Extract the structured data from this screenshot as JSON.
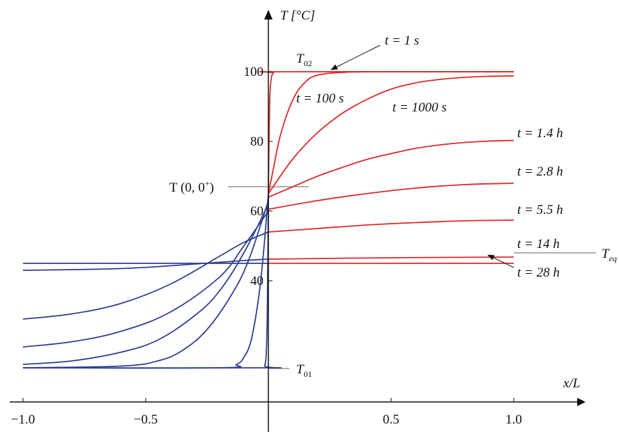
{
  "chart_data": {
    "type": "line",
    "title": "",
    "xlabel": "x/L",
    "ylabel": "T [°C]",
    "xlim": [
      -1.0,
      1.25
    ],
    "ylim": [
      10,
      115
    ],
    "x_ticks": [
      {
        "value": -1.0,
        "label": "−1.0"
      },
      {
        "value": -0.5,
        "label": "−0.5"
      },
      {
        "value": 0.5,
        "label": "0.5"
      },
      {
        "value": 1.0,
        "label": "1.0"
      }
    ],
    "y_ticks": [
      {
        "value": 40,
        "label": "40"
      },
      {
        "value": 60,
        "label": "60"
      },
      {
        "value": 80,
        "label": "80"
      },
      {
        "value": 100,
        "label": "100"
      }
    ],
    "grid": false,
    "colors": {
      "right_region": "#dd2a2a",
      "left_region": "#2f3f8f",
      "axis": "#111111"
    },
    "series": [
      {
        "name": "t = 1 s",
        "right": [
          [
            0,
            65
          ],
          [
            0.005,
            90
          ],
          [
            0.01,
            97
          ],
          [
            0.02,
            99.6
          ],
          [
            0.05,
            100
          ],
          [
            1.0,
            100
          ]
        ],
        "left": [
          [
            -1.0,
            15
          ],
          [
            -0.03,
            15
          ],
          [
            -0.015,
            15.6
          ],
          [
            -0.008,
            20
          ],
          [
            -0.004,
            33
          ],
          [
            0,
            65
          ]
        ]
      },
      {
        "name": "t = 100 s",
        "right": [
          [
            0,
            65
          ],
          [
            0.02,
            72
          ],
          [
            0.05,
            82
          ],
          [
            0.1,
            92
          ],
          [
            0.15,
            97
          ],
          [
            0.2,
            99
          ],
          [
            0.3,
            99.8
          ],
          [
            0.45,
            100
          ],
          [
            1.0,
            100
          ]
        ],
        "left": [
          [
            -1.0,
            15
          ],
          [
            -0.2,
            15
          ],
          [
            -0.13,
            16
          ],
          [
            -0.1,
            18
          ],
          [
            -0.07,
            23
          ],
          [
            -0.04,
            35
          ],
          [
            -0.02,
            48
          ],
          [
            0,
            65
          ]
        ]
      },
      {
        "name": "t = 1000 s",
        "right": [
          [
            0,
            65
          ],
          [
            0.1,
            75
          ],
          [
            0.2,
            82.5
          ],
          [
            0.3,
            88
          ],
          [
            0.4,
            92
          ],
          [
            0.5,
            95
          ],
          [
            0.6,
            96.8
          ],
          [
            0.7,
            97.8
          ],
          [
            0.8,
            98.4
          ],
          [
            0.9,
            98.7
          ],
          [
            1.0,
            98.8
          ]
        ],
        "left": [
          [
            -1.0,
            15
          ],
          [
            -0.6,
            15.5
          ],
          [
            -0.45,
            17
          ],
          [
            -0.35,
            20
          ],
          [
            -0.25,
            26
          ],
          [
            -0.15,
            36
          ],
          [
            -0.08,
            46
          ],
          [
            0,
            63
          ]
        ]
      },
      {
        "name": "t = 1.4 h",
        "right": [
          [
            0,
            64
          ],
          [
            0.1,
            67
          ],
          [
            0.2,
            70
          ],
          [
            0.3,
            72.5
          ],
          [
            0.4,
            74.8
          ],
          [
            0.5,
            76.5
          ],
          [
            0.6,
            78
          ],
          [
            0.7,
            79
          ],
          [
            0.8,
            79.7
          ],
          [
            0.9,
            80.1
          ],
          [
            1.0,
            80.3
          ]
        ],
        "left": [
          [
            -1.0,
            16
          ],
          [
            -0.8,
            17
          ],
          [
            -0.6,
            19.5
          ],
          [
            -0.45,
            23
          ],
          [
            -0.3,
            30
          ],
          [
            -0.2,
            37
          ],
          [
            -0.1,
            48
          ],
          [
            0,
            62
          ]
        ]
      },
      {
        "name": "t = 2.8 h",
        "right": [
          [
            0,
            60.5
          ],
          [
            0.2,
            63
          ],
          [
            0.4,
            65
          ],
          [
            0.6,
            66.6
          ],
          [
            0.8,
            67.6
          ],
          [
            1.0,
            68
          ]
        ],
        "left": [
          [
            -1.0,
            21
          ],
          [
            -0.8,
            22.5
          ],
          [
            -0.6,
            25.5
          ],
          [
            -0.4,
            31
          ],
          [
            -0.2,
            41
          ],
          [
            -0.1,
            50
          ],
          [
            0,
            60
          ]
        ]
      },
      {
        "name": "t = 5.5 h",
        "right": [
          [
            0,
            54
          ],
          [
            0.2,
            55
          ],
          [
            0.4,
            56
          ],
          [
            0.6,
            56.7
          ],
          [
            0.8,
            57.2
          ],
          [
            1.0,
            57.4
          ]
        ],
        "left": [
          [
            -1.0,
            29
          ],
          [
            -0.8,
            30.5
          ],
          [
            -0.6,
            33.5
          ],
          [
            -0.4,
            39
          ],
          [
            -0.2,
            47
          ],
          [
            -0.1,
            51
          ],
          [
            0,
            54
          ]
        ]
      },
      {
        "name": "t = 14 h",
        "right": [
          [
            0,
            46.2
          ],
          [
            0.5,
            46.6
          ],
          [
            1.0,
            46.8
          ]
        ],
        "left": [
          [
            -1.0,
            43
          ],
          [
            -0.6,
            43.5
          ],
          [
            -0.3,
            44.8
          ],
          [
            -0.1,
            45.8
          ],
          [
            0,
            46.2
          ]
        ]
      },
      {
        "name": "t = 28 h",
        "right": [
          [
            0,
            45
          ],
          [
            1.0,
            45
          ]
        ],
        "left": [
          [
            -1.0,
            45
          ],
          [
            0,
            45
          ]
        ]
      }
    ],
    "annotations": {
      "t02": {
        "base": "T",
        "sub": "02"
      },
      "t01": {
        "base": "T",
        "sub": "01"
      },
      "teq": {
        "base": "T",
        "sub": "eq"
      },
      "t0_base": "T (0, 0",
      "t0_sup": "+",
      "t0_close": ")",
      "T_eq_value": 45,
      "T0_value": 65,
      "T01_value": 15,
      "T02_value": 100
    }
  }
}
